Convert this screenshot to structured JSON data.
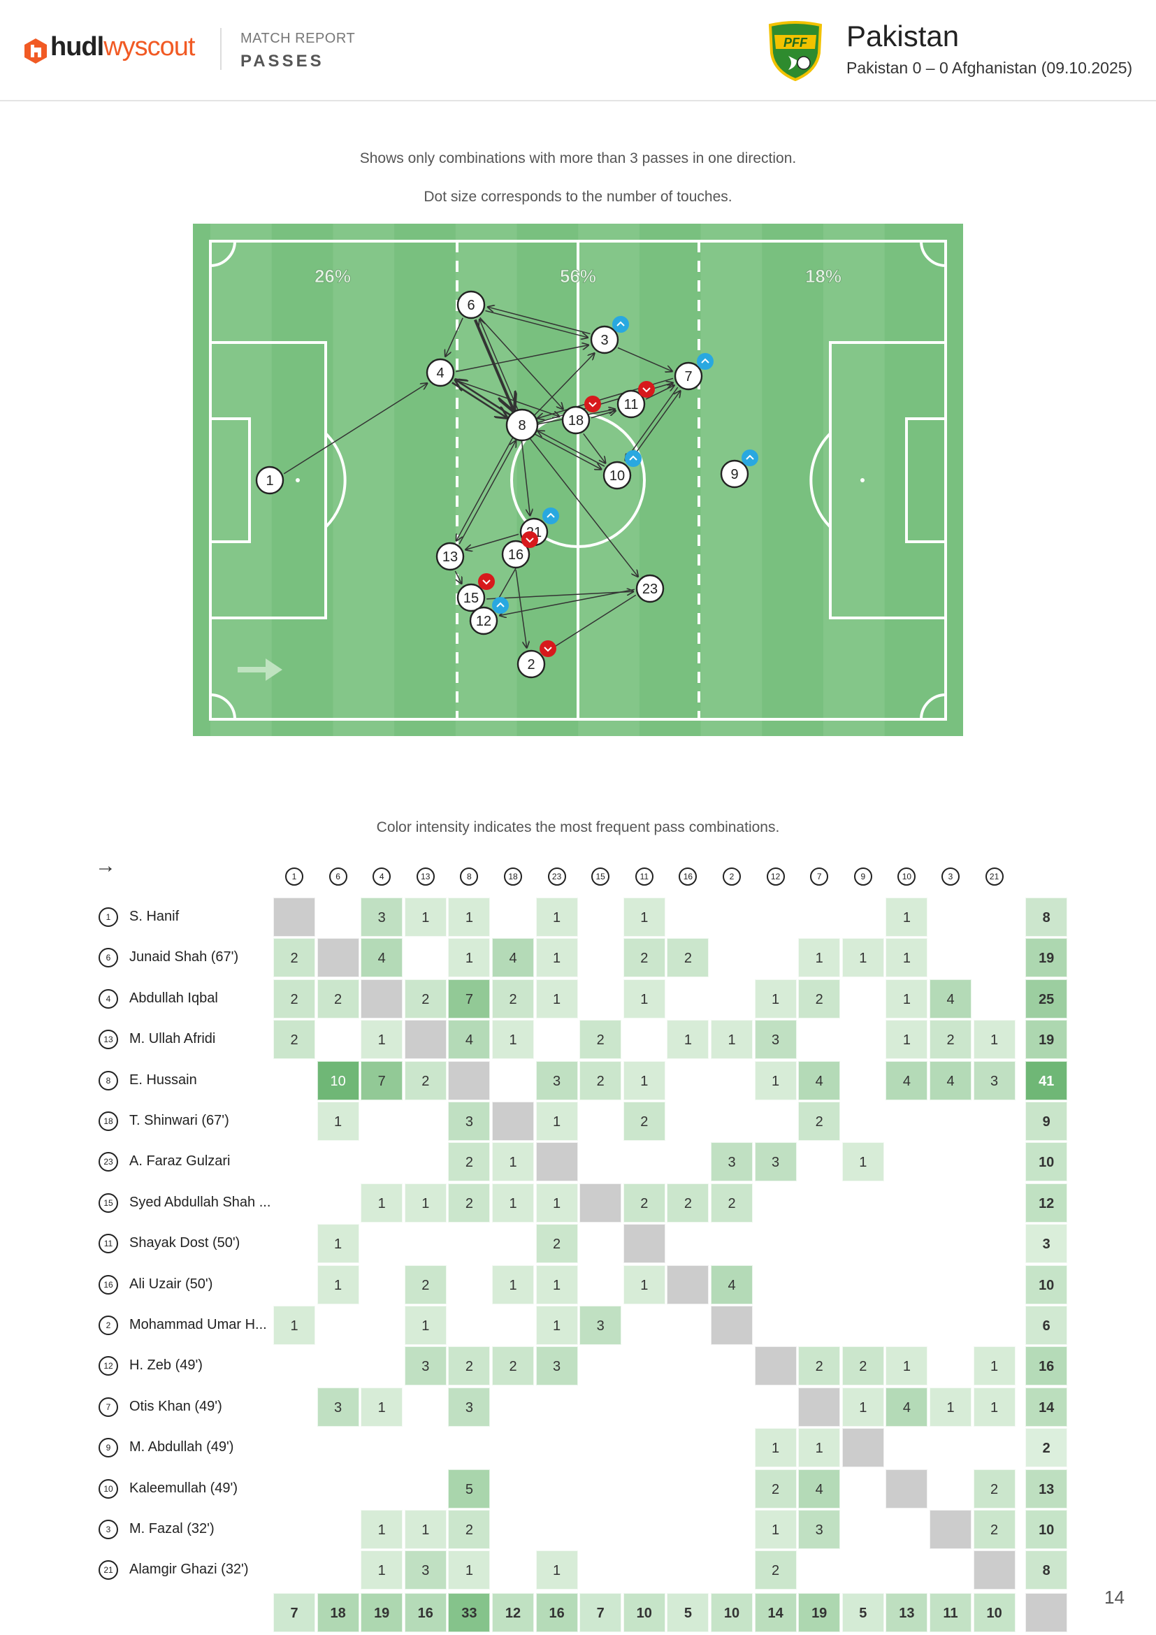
{
  "header": {
    "logo_hudl": "hudl",
    "logo_wyscout": "wyscout",
    "kicker": "MATCH REPORT",
    "title": "PASSES",
    "team": "Pakistan",
    "match": "Pakistan 0 – 0 Afghanistan (09.10.2025)",
    "crest_text": "PFF"
  },
  "notes": {
    "line1": "Shows only combinations with more than 3 passes in one direction.",
    "line2": "Dot size corresponds to the number of touches.",
    "matrix_note": "Color intensity indicates the most frequent pass combinations."
  },
  "pitch": {
    "zones": [
      "26%",
      "56%",
      "18%"
    ],
    "colors": {
      "pitch": "#79c07f",
      "stripe": "#84c689",
      "line": "#ffffff",
      "edge": "#222222",
      "up": "#29a8e0",
      "down": "#d7191c"
    },
    "players": [
      {
        "n": "1",
        "size": "s"
      },
      {
        "n": "6",
        "size": "s"
      },
      {
        "n": "4",
        "size": "m"
      },
      {
        "n": "3",
        "size": "s",
        "trend": "up"
      },
      {
        "n": "7",
        "size": "m",
        "trend": "up"
      },
      {
        "n": "11",
        "size": "m",
        "trend": "down"
      },
      {
        "n": "18",
        "size": "m",
        "trend": "down"
      },
      {
        "n": "8",
        "size": "l"
      },
      {
        "n": "10",
        "size": "m",
        "trend": "up"
      },
      {
        "n": "9",
        "size": "s",
        "trend": "up"
      },
      {
        "n": "21",
        "size": "m",
        "trend": "up"
      },
      {
        "n": "16",
        "size": "m",
        "trend": "down"
      },
      {
        "n": "13",
        "size": "m"
      },
      {
        "n": "23",
        "size": "m"
      },
      {
        "n": "15",
        "size": "m",
        "trend": "down"
      },
      {
        "n": "12",
        "size": "m",
        "trend": "up"
      },
      {
        "n": "2",
        "size": "m",
        "trend": "down"
      }
    ]
  },
  "matrix": {
    "arrow": "→",
    "columns": [
      "1",
      "6",
      "4",
      "13",
      "8",
      "18",
      "23",
      "15",
      "11",
      "16",
      "2",
      "12",
      "7",
      "9",
      "10",
      "3",
      "21"
    ],
    "max": 10,
    "rows": [
      {
        "n": "1",
        "name": "S. Hanif",
        "cells": [
          "",
          "",
          "3",
          "1",
          "1",
          "",
          "1",
          "",
          "1",
          "",
          "",
          "",
          "",
          "",
          "1",
          "",
          ""
        ],
        "total": "8"
      },
      {
        "n": "6",
        "name": "Junaid Shah (67')",
        "cells": [
          "2",
          "",
          "4",
          "",
          "1",
          "4",
          "1",
          "",
          "2",
          "2",
          "",
          "",
          "1",
          "1",
          "1",
          "",
          ""
        ],
        "total": "19"
      },
      {
        "n": "4",
        "name": "Abdullah Iqbal",
        "cells": [
          "2",
          "2",
          "",
          "2",
          "7",
          "2",
          "1",
          "",
          "1",
          "",
          "",
          "1",
          "2",
          "",
          "1",
          "4",
          ""
        ],
        "total": "25"
      },
      {
        "n": "13",
        "name": "M. Ullah Afridi",
        "cells": [
          "2",
          "",
          "1",
          "",
          "4",
          "1",
          "",
          "2",
          "",
          "1",
          "1",
          "3",
          "",
          "",
          "1",
          "2",
          "1"
        ],
        "total": "19"
      },
      {
        "n": "8",
        "name": "E. Hussain",
        "cells": [
          "",
          "10",
          "7",
          "2",
          "",
          "",
          "3",
          "2",
          "1",
          "",
          "",
          "1",
          "4",
          "",
          "4",
          "4",
          "3"
        ],
        "total": "41"
      },
      {
        "n": "18",
        "name": "T. Shinwari (67')",
        "cells": [
          "",
          "1",
          "",
          "",
          "3",
          "",
          "1",
          "",
          "2",
          "",
          "",
          "",
          "2",
          "",
          "",
          "",
          ""
        ],
        "total": "9"
      },
      {
        "n": "23",
        "name": "A. Faraz Gulzari",
        "cells": [
          "",
          "",
          "",
          "",
          "2",
          "1",
          "",
          "",
          "",
          "",
          "3",
          "3",
          "",
          "1",
          "",
          "",
          ""
        ],
        "total": "10"
      },
      {
        "n": "15",
        "name": "Syed Abdullah Shah ...",
        "cells": [
          "",
          "",
          "1",
          "1",
          "2",
          "1",
          "1",
          "",
          "2",
          "2",
          "2",
          "",
          "",
          "",
          "",
          "",
          ""
        ],
        "total": "12"
      },
      {
        "n": "11",
        "name": "Shayak Dost (50')",
        "cells": [
          "",
          "1",
          "",
          "",
          "",
          "",
          "2",
          "",
          "",
          "",
          "",
          "",
          "",
          "",
          "",
          "",
          ""
        ],
        "total": "3"
      },
      {
        "n": "16",
        "name": "Ali Uzair (50')",
        "cells": [
          "",
          "1",
          "",
          "2",
          "",
          "1",
          "1",
          "",
          "1",
          "",
          "4",
          "",
          "",
          "",
          "",
          "",
          ""
        ],
        "total": "10"
      },
      {
        "n": "2",
        "name": "Mohammad Umar H...",
        "cells": [
          "1",
          "",
          "",
          "1",
          "",
          "",
          "1",
          "3",
          "",
          "",
          "",
          "",
          "",
          "",
          "",
          "",
          ""
        ],
        "total": "6"
      },
      {
        "n": "12",
        "name": "H. Zeb (49')",
        "cells": [
          "",
          "",
          "",
          "3",
          "2",
          "2",
          "3",
          "",
          "",
          "",
          "",
          "",
          "2",
          "2",
          "1",
          "",
          "1"
        ],
        "total": "16"
      },
      {
        "n": "7",
        "name": "Otis Khan (49')",
        "cells": [
          "",
          "3",
          "1",
          "",
          "3",
          "",
          "",
          "",
          "",
          "",
          "",
          "",
          "",
          "1",
          "4",
          "1",
          "1"
        ],
        "total": "14"
      },
      {
        "n": "9",
        "name": "M. Abdullah (49')",
        "cells": [
          "",
          "",
          "",
          "",
          "",
          "",
          "",
          "",
          "",
          "",
          "",
          "1",
          "1",
          "",
          "",
          "",
          ""
        ],
        "total": "2"
      },
      {
        "n": "10",
        "name": "Kaleemullah (49')",
        "cells": [
          "",
          "",
          "",
          "",
          "5",
          "",
          "",
          "",
          "",
          "",
          "",
          "2",
          "4",
          "",
          "",
          "",
          "2"
        ],
        "total": "13"
      },
      {
        "n": "3",
        "name": "M. Fazal (32')",
        "cells": [
          "",
          "",
          "1",
          "1",
          "2",
          "",
          "",
          "",
          "",
          "",
          "",
          "1",
          "3",
          "",
          "",
          "",
          "2"
        ],
        "total": "10"
      },
      {
        "n": "21",
        "name": "Alamgir Ghazi (32')",
        "cells": [
          "",
          "",
          "1",
          "3",
          "1",
          "",
          "1",
          "",
          "",
          "",
          "",
          "2",
          "",
          "",
          "",
          "",
          ""
        ],
        "total": "8"
      }
    ],
    "col_totals": [
      "7",
      "18",
      "19",
      "16",
      "33",
      "12",
      "16",
      "7",
      "10",
      "5",
      "10",
      "14",
      "19",
      "5",
      "13",
      "11",
      "10"
    ]
  },
  "page_number": "14"
}
